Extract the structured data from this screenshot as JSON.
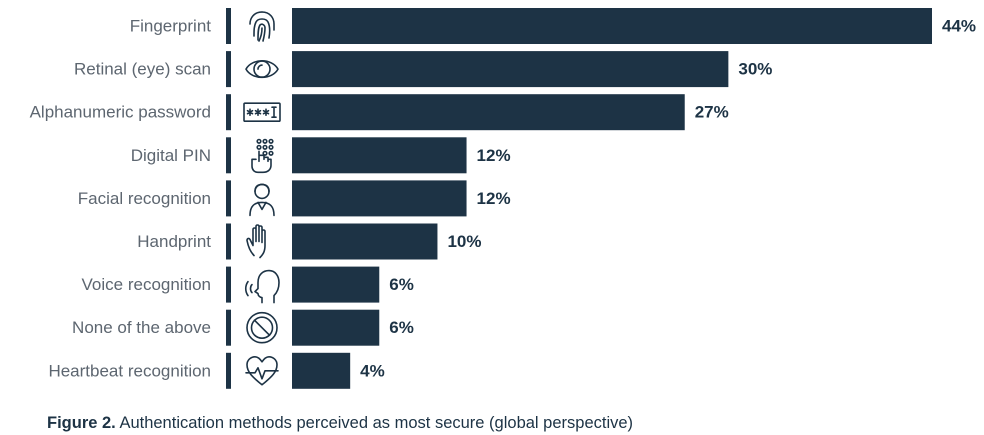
{
  "chart_data": {
    "type": "bar",
    "orientation": "horizontal",
    "categories": [
      "Fingerprint",
      "Retinal (eye) scan",
      "Alphanumeric password",
      "Digital PIN",
      "Facial recognition",
      "Handprint",
      "Voice recognition",
      "None of the above",
      "Heartbeat recognition"
    ],
    "values": [
      44,
      30,
      27,
      12,
      12,
      10,
      6,
      6,
      4
    ],
    "value_labels": [
      "44%",
      "30%",
      "27%",
      "12%",
      "12%",
      "10%",
      "6%",
      "6%",
      "4%"
    ],
    "icons": [
      "fingerprint-icon",
      "eye-icon",
      "password-icon",
      "keypad-icon",
      "face-icon",
      "hand-icon",
      "voice-icon",
      "prohibited-icon",
      "heartbeat-icon"
    ],
    "xlim": [
      0,
      44
    ],
    "grid": false,
    "bar_color": "#1d3345"
  },
  "caption": {
    "label": "Figure 2.",
    "text": " Authentication methods perceived as most secure (global perspective)"
  }
}
